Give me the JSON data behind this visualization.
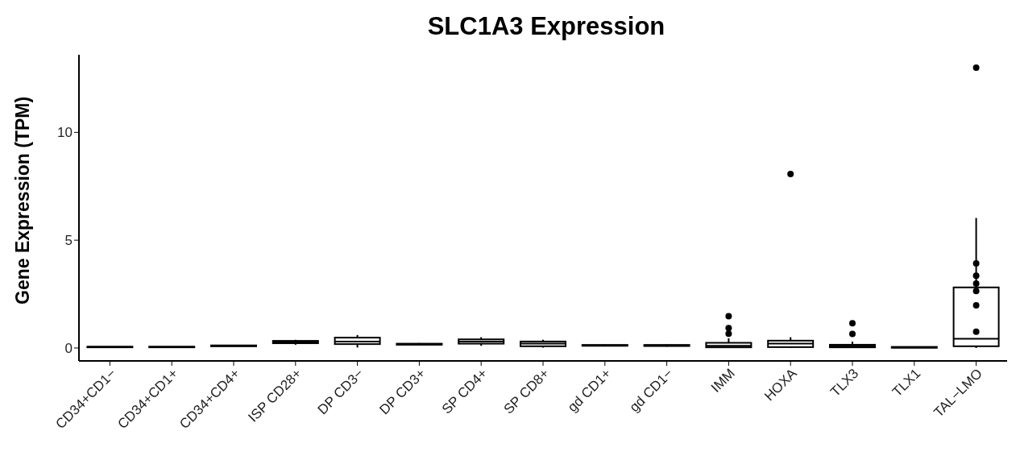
{
  "chart_data": {
    "type": "box",
    "title": "SLC1A3 Expression",
    "ylabel": "Gene Expression (TPM)",
    "categories": [
      "CD34+CD1−",
      "CD34+CD1+",
      "CD34+CD4+",
      "ISP CD28+",
      "DP CD3−",
      "DP CD3+",
      "SP CD4+",
      "SP CD8+",
      "gd CD1+",
      "gd CD1−",
      "IMM",
      "HOXA",
      "TLX3",
      "TLX1",
      "TAL−LMO"
    ],
    "boxes": [
      {
        "low": 0.02,
        "q1": 0.03,
        "median": 0.04,
        "q3": 0.06,
        "high": 0.07
      },
      {
        "low": 0.02,
        "q1": 0.03,
        "median": 0.04,
        "q3": 0.06,
        "high": 0.07
      },
      {
        "low": 0.07,
        "q1": 0.08,
        "median": 0.1,
        "q3": 0.12,
        "high": 0.13
      },
      {
        "low": 0.15,
        "q1": 0.22,
        "median": 0.27,
        "q3": 0.33,
        "high": 0.38
      },
      {
        "low": 0.02,
        "q1": 0.18,
        "median": 0.3,
        "q3": 0.48,
        "high": 0.6
      },
      {
        "low": 0.13,
        "q1": 0.15,
        "median": 0.18,
        "q3": 0.2,
        "high": 0.23
      },
      {
        "low": 0.1,
        "q1": 0.2,
        "median": 0.3,
        "q3": 0.4,
        "high": 0.5
      },
      {
        "low": 0.02,
        "q1": 0.08,
        "median": 0.2,
        "q3": 0.3,
        "high": 0.38
      },
      {
        "low": 0.08,
        "q1": 0.1,
        "median": 0.12,
        "q3": 0.14,
        "high": 0.16
      },
      {
        "low": 0.06,
        "q1": 0.09,
        "median": 0.12,
        "q3": 0.14,
        "high": 0.16
      },
      {
        "low": 0.0,
        "q1": 0.03,
        "median": 0.1,
        "q3": 0.24,
        "high": 0.45,
        "outliers": [
          0.66,
          0.92,
          1.47
        ]
      },
      {
        "low": 0.0,
        "q1": 0.04,
        "median": 0.2,
        "q3": 0.34,
        "high": 0.5,
        "outliers": [
          8.07
        ]
      },
      {
        "low": 0.0,
        "q1": 0.03,
        "median": 0.08,
        "q3": 0.15,
        "high": 0.3,
        "outliers": [
          0.65,
          1.15
        ]
      },
      {
        "low": 0.0,
        "q1": 0.01,
        "median": 0.03,
        "q3": 0.05,
        "high": 0.07
      },
      {
        "low": 0.0,
        "q1": 0.08,
        "median": 0.43,
        "q3": 2.81,
        "high": 6.03,
        "outliers": [
          13.0
        ]
      }
    ],
    "series": [
      {
        "type": "scatter",
        "color": "#000000",
        "x": [
          "TAL−LMO",
          "TAL−LMO",
          "TAL−LMO",
          "TAL−LMO",
          "TAL−LMO",
          "TAL−LMO"
        ],
        "values": [
          3.92,
          3.35,
          2.99,
          2.64,
          1.98,
          0.75
        ]
      }
    ],
    "ylim": [
      -0.6,
      13.6
    ],
    "yticks": [
      0,
      5,
      10
    ],
    "grid": false,
    "legend": false
  }
}
